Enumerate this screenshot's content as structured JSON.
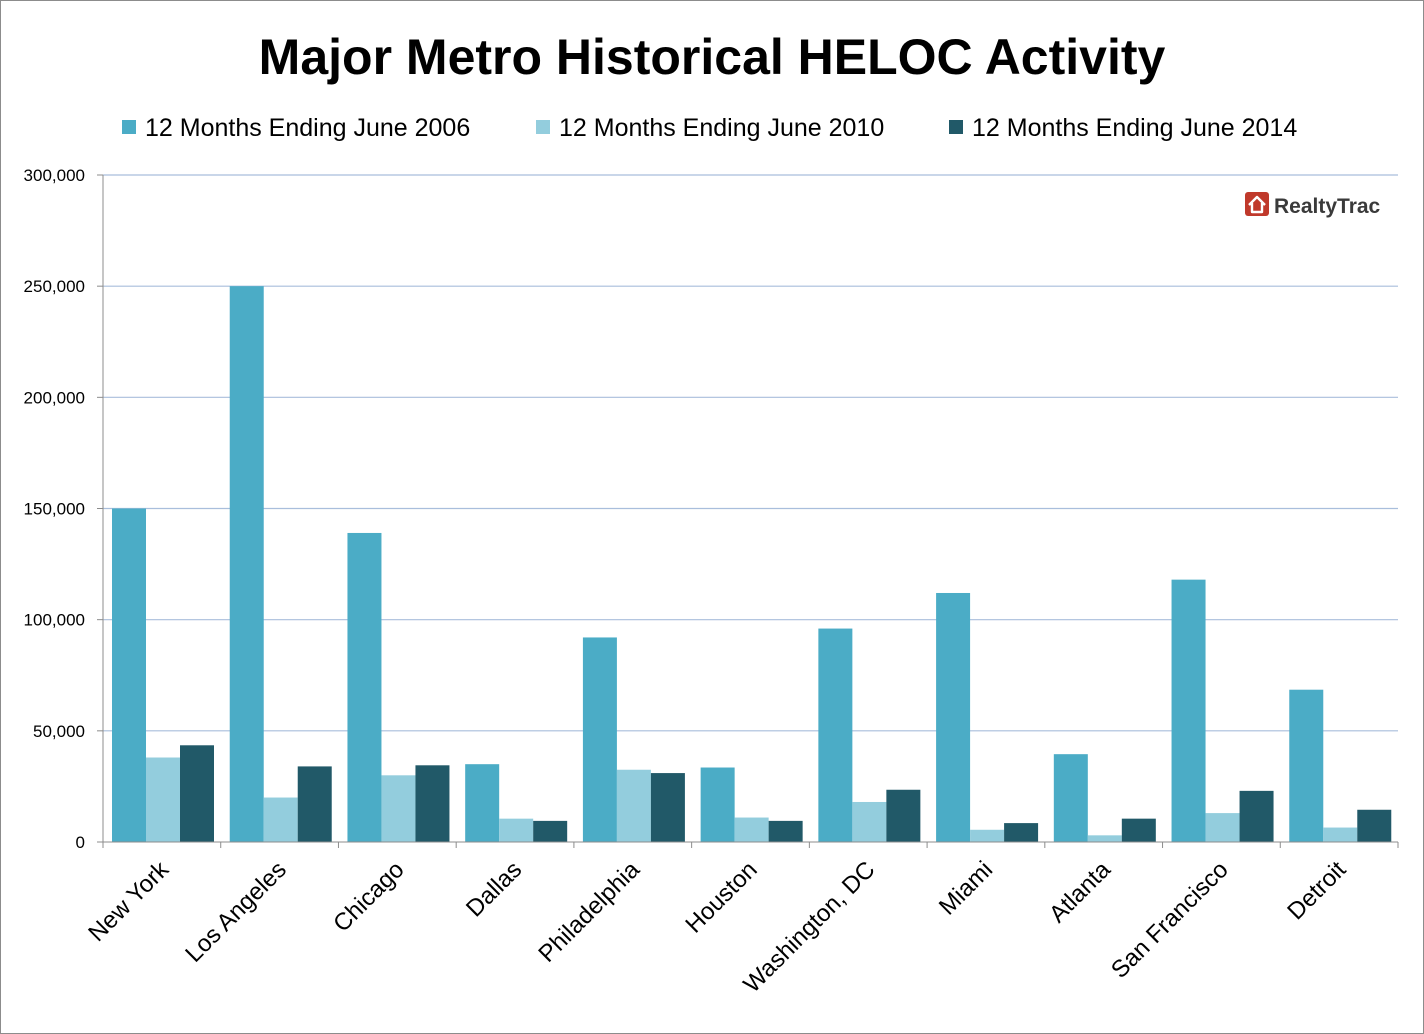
{
  "chart_data": {
    "type": "bar",
    "title": "Major Metro Historical HELOC Activity",
    "xlabel": "",
    "ylabel": "",
    "categories": [
      "New York",
      "Los Angeles",
      "Chicago",
      "Dallas",
      "Philadelphia",
      "Houston",
      "Washington, DC",
      "Miami",
      "Atlanta",
      "San Francisco",
      "Detroit"
    ],
    "series": [
      {
        "name": "12 Months Ending June 2006",
        "color": "#4bacc6",
        "values": [
          150000,
          250000,
          139000,
          35000,
          92000,
          33500,
          96000,
          112000,
          39500,
          118000,
          68500
        ]
      },
      {
        "name": "12 Months Ending June 2010",
        "color": "#93cddd",
        "values": [
          38000,
          20000,
          30000,
          10500,
          32500,
          11000,
          18000,
          5500,
          3000,
          13000,
          6500
        ]
      },
      {
        "name": "12 Months Ending June 2014",
        "color": "#215968",
        "values": [
          43500,
          34000,
          34500,
          9500,
          31000,
          9500,
          23500,
          8500,
          10500,
          23000,
          14500
        ]
      }
    ],
    "ylim": [
      0,
      300000
    ],
    "yticks": [
      0,
      50000,
      100000,
      150000,
      200000,
      250000,
      300000
    ],
    "ytick_labels": [
      "0",
      "50,000",
      "100,000",
      "150,000",
      "200,000",
      "250,000",
      "300,000"
    ],
    "grid": true,
    "legend_position": "top",
    "watermark": {
      "text": "RealtyTrac",
      "icon": "house-icon",
      "icon_color": "#c0392b"
    }
  }
}
